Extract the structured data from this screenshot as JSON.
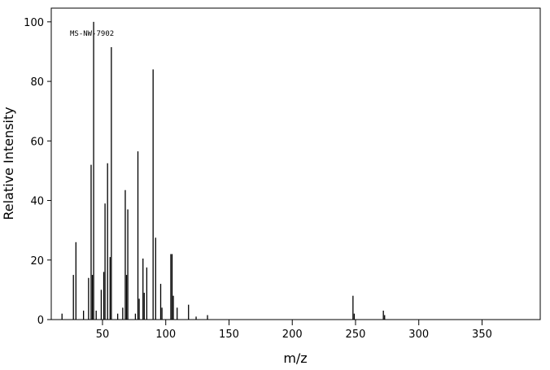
{
  "chart_data": {
    "type": "stem",
    "annotation": "MS-NW-7902",
    "xlabel": "m/z",
    "ylabel": "Relative Intensity",
    "x": [
      18,
      27,
      29,
      35,
      39,
      41,
      42,
      43,
      45,
      49,
      51,
      52,
      54,
      56,
      57,
      62,
      66,
      68,
      69,
      70,
      76,
      78,
      79,
      82,
      83,
      85,
      90,
      92,
      96,
      97,
      104,
      105,
      106,
      109,
      118,
      124,
      133,
      248,
      249,
      272,
      273
    ],
    "values": [
      2,
      15,
      26,
      3,
      14,
      52,
      15,
      100,
      3,
      10,
      16,
      39,
      52.5,
      21,
      91.5,
      2,
      4,
      43.5,
      15,
      37,
      2,
      56.5,
      7,
      20.5,
      9,
      17.5,
      84,
      27.5,
      12,
      4,
      22,
      22,
      8,
      4,
      5,
      1,
      1.5,
      8,
      2,
      3,
      1.5
    ],
    "color": "#000000",
    "xlim": [
      9.5,
      396
    ],
    "ylim": [
      0,
      104.6
    ],
    "xticks": [
      50,
      100,
      150,
      200,
      250,
      300,
      350
    ],
    "yticks": [
      0,
      20,
      40,
      60,
      80,
      100
    ]
  }
}
